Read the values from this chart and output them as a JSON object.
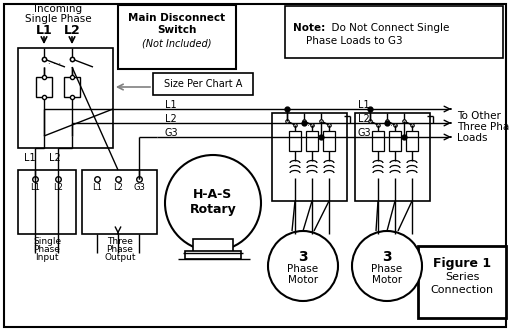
{
  "bg_color": "#FFFFFF",
  "line_color": "#000000",
  "gray_color": "#808080",
  "note_text_bold": "Note:",
  "note_text1": "  Do Not Connect Single",
  "note_text2": "   Phase Loads to G3",
  "figure1_line1": "Figure 1",
  "figure1_line2": "Series",
  "figure1_line3": "Connection",
  "incoming_line1": "Incoming",
  "incoming_line2": "Single Phase",
  "disconnect_line1": "Main Disconnect",
  "disconnect_line2": "Switch",
  "disconnect_line3": "(Not Included)",
  "size_label": "Size Per Chart A",
  "to_other1": "To Other",
  "to_other2": "Three Phase",
  "to_other3": "Loads",
  "has_line1": "H-A-S",
  "has_line2": "Rotary",
  "motor_label1": "3",
  "motor_label2": "Phase",
  "motor_label3": "Motor",
  "sp_label1": "Single",
  "sp_label2": "Phase",
  "sp_label3": "Input",
  "tp_label1": "Three",
  "tp_label2": "Phase",
  "tp_label3": "Output"
}
